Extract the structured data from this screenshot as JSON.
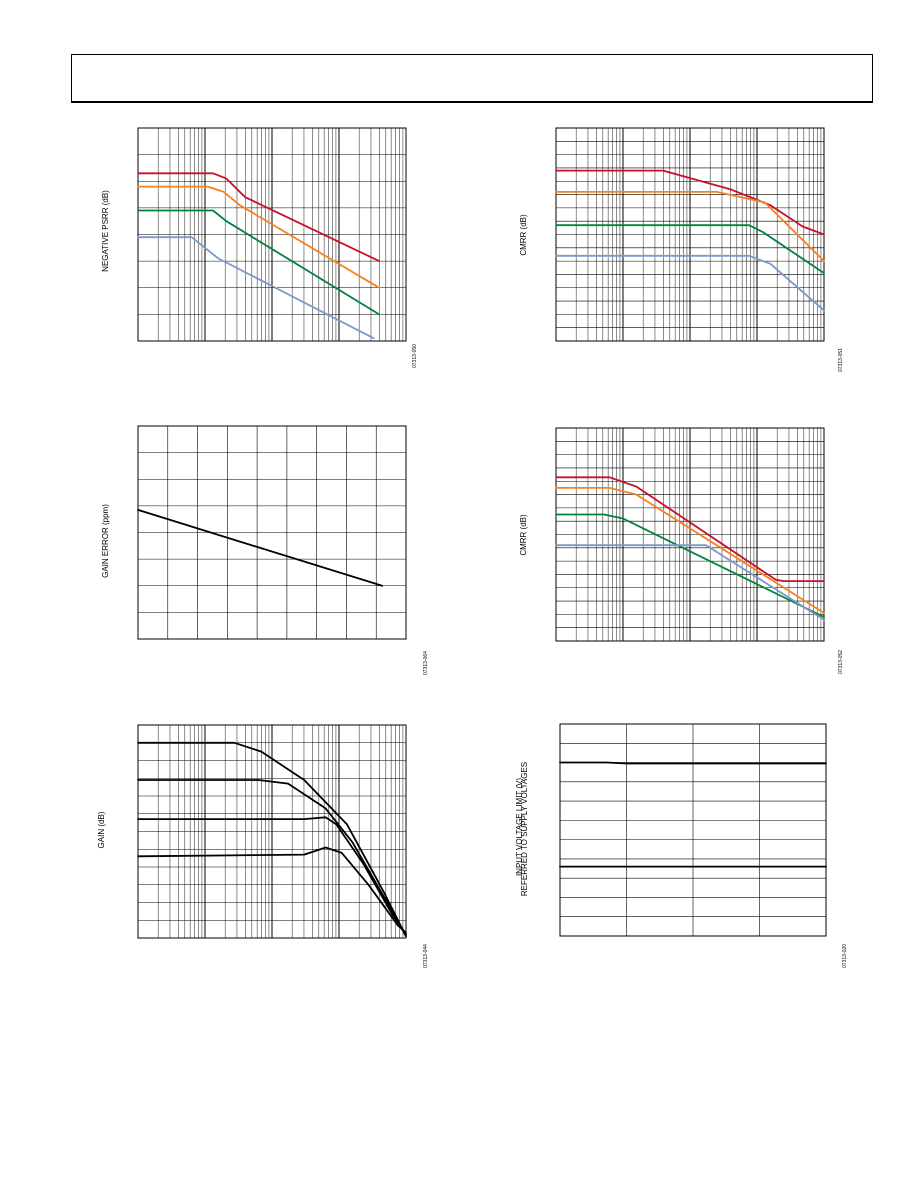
{
  "page": {
    "header_text": ""
  },
  "chart_data": [
    {
      "id": "chart1",
      "type": "line",
      "xscale": "log",
      "ylabel": "NEGATIVE PSRR (dB)",
      "fig_id": "07313-050",
      "xdecades": 4,
      "ylim": [
        0,
        8
      ],
      "series": [
        {
          "color": "#c8102e",
          "x_frac": [
            0,
            0.28,
            0.33,
            0.4,
            0.9
          ],
          "y": [
            6.3,
            6.3,
            6.1,
            5.4,
            3.0
          ]
        },
        {
          "color": "#f58220",
          "x_frac": [
            0,
            0.26,
            0.32,
            0.38,
            0.9
          ],
          "y": [
            5.8,
            5.8,
            5.6,
            5.1,
            2.0
          ]
        },
        {
          "color": "#00843d",
          "x_frac": [
            0,
            0.28,
            0.33,
            0.9
          ],
          "y": [
            4.9,
            4.9,
            4.5,
            1.0
          ]
        },
        {
          "color": "#7a99c8",
          "x_frac": [
            0,
            0.2,
            0.3,
            0.88
          ],
          "y": [
            3.9,
            3.9,
            3.1,
            0.1
          ]
        }
      ]
    },
    {
      "id": "chart2",
      "type": "line",
      "xscale": "log",
      "ylabel": "CMRR (dB)",
      "fig_id": "07313-051",
      "xdecades": 4,
      "ylim": [
        0,
        16
      ],
      "series": [
        {
          "color": "#c8102e",
          "x_frac": [
            0,
            0.4,
            0.65,
            0.8,
            0.92,
            1.0
          ],
          "y": [
            12.8,
            12.8,
            11.4,
            10.2,
            8.6,
            8.0
          ]
        },
        {
          "color": "#f58220",
          "x_frac": [
            0,
            0.6,
            0.78,
            0.88,
            1.0
          ],
          "y": [
            11.2,
            11.2,
            10.4,
            8.4,
            6.0
          ]
        },
        {
          "color": "#00843d",
          "x_frac": [
            0,
            0.72,
            0.77,
            1.0
          ],
          "y": [
            8.7,
            8.7,
            8.2,
            5.1
          ]
        },
        {
          "color": "#7a99c8",
          "x_frac": [
            0,
            0.72,
            0.8,
            1.0
          ],
          "y": [
            6.4,
            6.4,
            5.8,
            2.3
          ]
        }
      ]
    },
    {
      "id": "chart3",
      "type": "line",
      "xscale": "linear",
      "ylabel": "GAIN ERROR (ppm)",
      "fig_id": "07313-064",
      "ylim": [
        0,
        8
      ],
      "xlim": [
        0,
        9
      ],
      "series": [
        {
          "color": "#000000",
          "x": [
            0,
            8.2
          ],
          "y": [
            4.85,
            2.0
          ]
        }
      ]
    },
    {
      "id": "chart4",
      "type": "line",
      "xscale": "log",
      "ylabel": "CMRR (dB)",
      "fig_id": "07313-052",
      "xdecades": 4,
      "ylim": [
        0,
        16
      ],
      "series": [
        {
          "color": "#c8102e",
          "x_frac": [
            0,
            0.2,
            0.3,
            0.82,
            0.85,
            1.0
          ],
          "y": [
            12.3,
            12.3,
            11.6,
            4.6,
            4.5,
            4.5
          ]
        },
        {
          "color": "#f58220",
          "x_frac": [
            0,
            0.2,
            0.3,
            1.0
          ],
          "y": [
            11.5,
            11.5,
            11.0,
            2.1
          ]
        },
        {
          "color": "#00843d",
          "x_frac": [
            0,
            0.18,
            0.25,
            1.0
          ],
          "y": [
            9.5,
            9.5,
            9.2,
            1.8
          ]
        },
        {
          "color": "#7a99c8",
          "x_frac": [
            0,
            0.15,
            0.56,
            1.0
          ],
          "y": [
            7.2,
            7.2,
            7.2,
            1.6
          ]
        }
      ]
    },
    {
      "id": "chart5",
      "type": "line",
      "xscale": "log",
      "ylabel": "GAIN (dB)",
      "fig_id": "07313-044",
      "xdecades": 4,
      "ylim": [
        0,
        12
      ],
      "series": [
        {
          "color": "#000000",
          "x_frac": [
            0,
            0.36,
            0.46,
            0.62,
            0.78,
            0.92,
            1.0
          ],
          "y": [
            11.0,
            11.0,
            10.5,
            8.9,
            6.4,
            2.5,
            0.1
          ]
        },
        {
          "color": "#000000",
          "x_frac": [
            0,
            0.45,
            0.56,
            0.7,
            0.8,
            0.93,
            1.0
          ],
          "y": [
            8.9,
            8.9,
            8.7,
            7.3,
            5.4,
            2.0,
            0.1
          ]
        },
        {
          "color": "#000000",
          "x_frac": [
            0,
            0.62,
            0.7,
            0.74,
            0.84,
            0.95,
            1.0
          ],
          "y": [
            6.7,
            6.7,
            6.8,
            6.4,
            4.2,
            1.3,
            0.2
          ]
        },
        {
          "color": "#000000",
          "x_frac": [
            0,
            0.62,
            0.7,
            0.76,
            0.86,
            0.97,
            1.0
          ],
          "y": [
            4.6,
            4.7,
            5.1,
            4.8,
            3.0,
            0.7,
            0.3
          ]
        }
      ]
    },
    {
      "id": "chart6",
      "type": "line",
      "xscale": "linear",
      "ylabel": "INPUT VOLTAGE LIMIT (V)",
      "ylabel2": "REFERRED TO SUPPLY VOLTAGES",
      "fig_id": "07313-020",
      "ylim": [
        0,
        11
      ],
      "xlim": [
        0,
        4
      ],
      "series": [
        {
          "color": "#000000",
          "x": [
            0,
            0.7,
            1.0,
            1.5,
            4.0
          ],
          "y": [
            9.0,
            9.0,
            8.95,
            8.95,
            8.95
          ]
        },
        {
          "color": "#000000",
          "x": [
            0,
            4.0
          ],
          "y": [
            3.6,
            3.6
          ]
        }
      ]
    }
  ]
}
